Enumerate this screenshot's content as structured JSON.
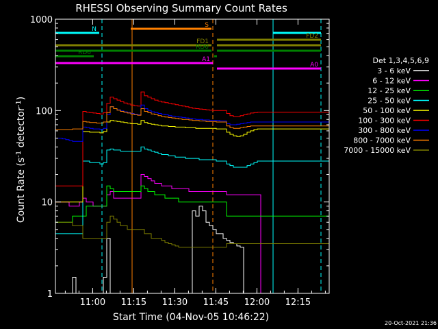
{
  "chart_data": {
    "type": "line",
    "title": "RHESSI Observing Summary Count Rates",
    "xlabel": "Start Time (04-Nov-05 10:46:22)",
    "ylabel_main": "Count Rate (s",
    "ylabel_sup1": "-1",
    "ylabel_mid": " detector",
    "ylabel_sup2": "-1",
    "ylabel_end": ")",
    "yscale": "log",
    "ylim": [
      1,
      1000
    ],
    "xlim_minutes": [
      0,
      100
    ],
    "x_ticks": [
      {
        "label": "11:00",
        "t": 13.6
      },
      {
        "label": "11:15",
        "t": 28.6
      },
      {
        "label": "11:30",
        "t": 43.6
      },
      {
        "label": "11:45",
        "t": 58.6
      },
      {
        "label": "12:00",
        "t": 73.6
      },
      {
        "label": "12:15",
        "t": 88.6
      }
    ],
    "y_ticks": [
      {
        "label": "1",
        "v": 1
      },
      {
        "label": "10",
        "v": 10
      },
      {
        "label": "100",
        "v": 100
      },
      {
        "label": "1000",
        "v": 1000
      }
    ],
    "legend_header": "Det 1,3,4,5,6,9",
    "series": [
      {
        "name": "3 - 6 keV",
        "color": "#ffffff",
        "values": [
          1.0,
          1.0,
          1.0,
          1.0,
          1.0,
          1.5,
          1.0,
          1.0,
          1.0,
          1.0,
          1.0,
          1.0,
          1.0,
          1.0,
          1.5,
          4.0,
          1.0,
          1.0,
          1.0,
          1.0,
          1.0,
          1.0,
          1.0,
          1.0,
          1.0,
          1.0,
          1.0,
          1.0,
          1.0,
          1.0,
          1.0,
          1.0,
          1.0,
          1.0,
          1.0,
          1.0,
          1.0,
          1.0,
          1.0,
          1.0,
          8.0,
          7.0,
          9.0,
          8.0,
          6.0,
          5.5,
          5.0,
          4.5,
          4.5,
          4.0,
          3.8,
          3.6,
          3.5,
          3.3,
          3.2,
          1.0,
          1.0,
          1.0,
          1.0,
          1.0,
          1.0,
          1.0,
          1.0,
          1.0,
          1.0,
          1.0,
          1.0,
          1.0,
          1.0,
          1.0,
          1.0,
          1.0,
          1.0,
          1.0,
          1.0,
          1.0,
          1.0,
          1.0,
          1.0,
          1.0
        ]
      },
      {
        "name": "6 - 12 keV",
        "color": "#ff00ff",
        "values": [
          10,
          10,
          10,
          10,
          9,
          9,
          9,
          10,
          11,
          10,
          10,
          9,
          9,
          9,
          9,
          12,
          13,
          11,
          11,
          11,
          11,
          11,
          11,
          11,
          11,
          20,
          19,
          18,
          17,
          16,
          16,
          15,
          15,
          15,
          14,
          14,
          14,
          14,
          14,
          13,
          13,
          13,
          13,
          13,
          13,
          13,
          13,
          13,
          13,
          13,
          12,
          12,
          12,
          12,
          12,
          12,
          12,
          12,
          12,
          12,
          1.0,
          1.0,
          1.0,
          1.0,
          1.0,
          1.0,
          1.0,
          1.0,
          1.0,
          1.0,
          1.0,
          1.0,
          1.0,
          1.0,
          1.0,
          1.0,
          1.0,
          1.0,
          1.0,
          1.0
        ]
      },
      {
        "name": "12 - 25 keV",
        "color": "#00ff00",
        "values": [
          6,
          6,
          6,
          6,
          6,
          7,
          7,
          7,
          7,
          9,
          9,
          9,
          9,
          9,
          9,
          15,
          14,
          13,
          13,
          13,
          13,
          13,
          13,
          13,
          13,
          15,
          14,
          13,
          13,
          12,
          12,
          12,
          11,
          11,
          11,
          11,
          10,
          10,
          10,
          10,
          10,
          10,
          10,
          10,
          10,
          10,
          10,
          10,
          10,
          10,
          7,
          7,
          7,
          7,
          7,
          7,
          7,
          7,
          7,
          7,
          7,
          7,
          7,
          7,
          7,
          7,
          7,
          7,
          7,
          7,
          7,
          7,
          7,
          7,
          7,
          7,
          7,
          7,
          7,
          7
        ]
      },
      {
        "name": "25 - 50 keV",
        "color": "#00ffff",
        "values": [
          4.5,
          4.5,
          4.5,
          4.5,
          4.5,
          4.5,
          4.5,
          4.5,
          28,
          28,
          27,
          27,
          27,
          26,
          27,
          37,
          38,
          37,
          37,
          36,
          36,
          36,
          36,
          36,
          36,
          40,
          38,
          37,
          36,
          35,
          34,
          33,
          33,
          32,
          32,
          31,
          31,
          31,
          30,
          30,
          30,
          30,
          29,
          29,
          29,
          29,
          29,
          28,
          28,
          28,
          26,
          25,
          24,
          24,
          24,
          24,
          25,
          26,
          27,
          28,
          28,
          28,
          28,
          28,
          28,
          28,
          28,
          28,
          28,
          28,
          28,
          28,
          28,
          28,
          28,
          28,
          28,
          28,
          28,
          28
        ]
      },
      {
        "name": "50 - 100 keV",
        "color": "#ffff00",
        "values": [
          10,
          10,
          10,
          10,
          10,
          10,
          10,
          10,
          59,
          59,
          58,
          58,
          58,
          57,
          59,
          75,
          78,
          77,
          76,
          75,
          74,
          73,
          72,
          72,
          71,
          78,
          74,
          72,
          71,
          70,
          69,
          68,
          68,
          67,
          67,
          66,
          66,
          66,
          65,
          65,
          65,
          64,
          64,
          64,
          64,
          64,
          64,
          63,
          63,
          63,
          58,
          55,
          53,
          52,
          53,
          55,
          58,
          60,
          62,
          63,
          63,
          63,
          63,
          63,
          63,
          63,
          63,
          63,
          63,
          63,
          63,
          63,
          63,
          63,
          63,
          63,
          63,
          63,
          63,
          63
        ]
      },
      {
        "name": "100 - 300 keV",
        "color": "#ff0000",
        "values": [
          15,
          15,
          15,
          15,
          15,
          15,
          15,
          15,
          98,
          96,
          95,
          94,
          93,
          92,
          95,
          120,
          140,
          135,
          130,
          125,
          121,
          118,
          115,
          113,
          112,
          160,
          145,
          140,
          135,
          130,
          127,
          124,
          122,
          120,
          118,
          116,
          114,
          112,
          110,
          108,
          106,
          105,
          104,
          103,
          102,
          101,
          100,
          100,
          100,
          100,
          93,
          88,
          86,
          86,
          88,
          90,
          92,
          94,
          95,
          96,
          96,
          96,
          96,
          96,
          96,
          96,
          96,
          96,
          96,
          96,
          96,
          96,
          96,
          96,
          96,
          96,
          96,
          96,
          96,
          96
        ]
      },
      {
        "name": "300 - 800 keV",
        "color": "#0000ff",
        "values": [
          50,
          50,
          49,
          48,
          47,
          46,
          46,
          46,
          66,
          65,
          64,
          63,
          63,
          62,
          64,
          90,
          110,
          105,
          102,
          99,
          97,
          95,
          93,
          91,
          90,
          115,
          105,
          100,
          97,
          95,
          93,
          91,
          90,
          88,
          87,
          86,
          85,
          84,
          83,
          82,
          81,
          80,
          80,
          79,
          79,
          78,
          78,
          78,
          77,
          77,
          72,
          70,
          70,
          71,
          72,
          73,
          74,
          75,
          75,
          75,
          75,
          75,
          75,
          75,
          75,
          75,
          75,
          75,
          75,
          75,
          75,
          75,
          75,
          75,
          75,
          75,
          75,
          75,
          75,
          75
        ]
      },
      {
        "name": "800 - 7000 keV",
        "color": "#ff8000",
        "values": [
          62,
          62,
          62,
          62,
          62,
          63,
          63,
          63,
          76,
          75,
          74,
          74,
          73,
          73,
          75,
          95,
          110,
          105,
          101,
          98,
          96,
          94,
          92,
          90,
          89,
          105,
          98,
          95,
          92,
          90,
          88,
          86,
          85,
          84,
          83,
          82,
          81,
          80,
          80,
          79,
          78,
          78,
          77,
          77,
          76,
          76,
          76,
          75,
          75,
          75,
          68,
          65,
          64,
          64,
          65,
          66,
          67,
          68,
          68,
          68,
          68,
          68,
          68,
          68,
          68,
          68,
          68,
          68,
          68,
          68,
          68,
          68,
          68,
          68,
          68,
          68,
          68,
          68,
          68,
          68
        ]
      },
      {
        "name": "7000 - 15000 keV",
        "color": "#808000",
        "values": [
          6,
          6,
          6,
          6,
          6,
          5.5,
          5.5,
          5.5,
          4,
          4,
          4,
          4,
          4,
          4,
          4,
          6,
          7,
          6.5,
          6,
          5.5,
          5.5,
          5,
          5,
          5,
          5,
          5,
          4.5,
          4.5,
          4,
          4,
          4,
          3.8,
          3.6,
          3.5,
          3.4,
          3.3,
          3.2,
          3.2,
          3.2,
          3.2,
          3.2,
          3.2,
          3.2,
          3.2,
          3.2,
          3.2,
          3.2,
          3.2,
          3.2,
          3.2,
          3.5,
          3.5,
          3.5,
          3.5,
          3.5,
          3.5,
          3.5,
          3.5,
          3.5,
          3.5,
          3.5,
          3.5,
          3.5,
          3.5,
          3.5,
          3.5,
          3.5,
          3.5,
          3.5,
          3.5,
          3.5,
          3.5,
          3.5,
          3.5,
          3.5,
          3.5,
          3.5,
          3.5,
          3.5,
          3.5
        ]
      }
    ],
    "flag_bars": [
      {
        "label": "N",
        "color": "#00ffff",
        "segments": [
          [
            0,
            16
          ],
          [
            79.5,
            97
          ]
        ]
      },
      {
        "label": "S",
        "color": "#ff8000",
        "segments": [
          [
            27.5,
            57
          ]
        ]
      },
      {
        "label": "FD1",
        "color": "#808000",
        "segments": [
          [
            0,
            57
          ],
          [
            59,
            97
          ]
        ]
      },
      {
        "label": "FD2",
        "color": "#808000",
        "segments": [
          [
            59,
            97
          ]
        ]
      },
      {
        "label": "RD0",
        "color": "#008000",
        "segments": [
          [
            0,
            57
          ],
          [
            59,
            97
          ]
        ]
      },
      {
        "label": "RD6",
        "color": "#008000",
        "segments": [
          [
            0,
            14
          ],
          [
            58,
            59
          ]
        ]
      },
      {
        "label": "A1",
        "color": "#ff00ff",
        "segments": [
          [
            0,
            57.5
          ]
        ]
      },
      {
        "label": "A0",
        "color": "#ff00ff",
        "segments": [
          [
            59,
            97
          ]
        ]
      }
    ],
    "vlines": [
      {
        "t": 17,
        "color": "#00ffff",
        "style": "dash"
      },
      {
        "t": 28,
        "color": "#ff8000",
        "style": "solid"
      },
      {
        "t": 57.5,
        "color": "#ff8000",
        "style": "dash"
      },
      {
        "t": 79.5,
        "color": "#00ffff",
        "style": "solid"
      },
      {
        "t": 97,
        "color": "#00ffff",
        "style": "dash"
      }
    ],
    "footer_date": "20-Oct-2021 21:36"
  }
}
